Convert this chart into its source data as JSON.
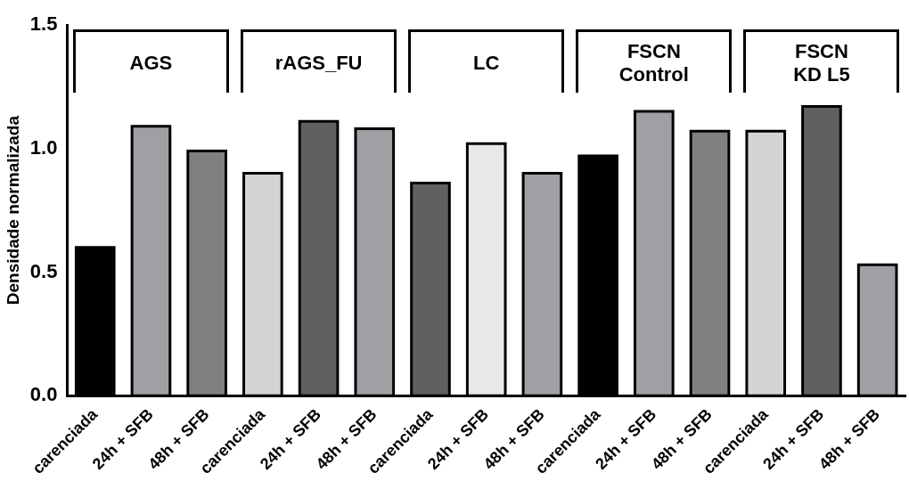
{
  "chart_data": {
    "type": "bar",
    "ylabel": "Densidade normalizada",
    "categories": [
      "carenciada",
      "24h + SFB",
      "48h + SFB",
      "carenciada",
      "24h + SFB",
      "48h + SFB",
      "carenciada",
      "24h + SFB",
      "48h + SFB",
      "carenciada",
      "24h + SFB",
      "48h + SFB",
      "carenciada",
      "24h + SFB",
      "48h + SFB"
    ],
    "values": [
      0.6,
      1.09,
      0.99,
      0.9,
      1.11,
      1.08,
      0.86,
      1.02,
      0.9,
      0.97,
      1.15,
      1.07,
      1.07,
      1.17,
      0.53
    ],
    "colors": [
      "#000000",
      "#a0a0a4",
      "#808080",
      "#d4d4d4",
      "#606060",
      "#a0a0a4",
      "#606060",
      "#e8e8e8",
      "#a0a0a4",
      "#000000",
      "#a0a0a4",
      "#808080",
      "#d4d4d4",
      "#606060",
      "#a0a0a4"
    ],
    "ylim": [
      0,
      1.5
    ],
    "yticks": [
      {
        "value": 0,
        "label": "0.0"
      },
      {
        "value": 0.5,
        "label": "0.5"
      },
      {
        "value": 1,
        "label": "1.0"
      },
      {
        "value": 1.5,
        "label": "1.5"
      }
    ],
    "grid": false,
    "legend": false,
    "annotations": [
      "AGS",
      "rAGS_FU",
      "LC",
      "FSCN\nControl",
      "FSCN\nKD L5"
    ]
  }
}
